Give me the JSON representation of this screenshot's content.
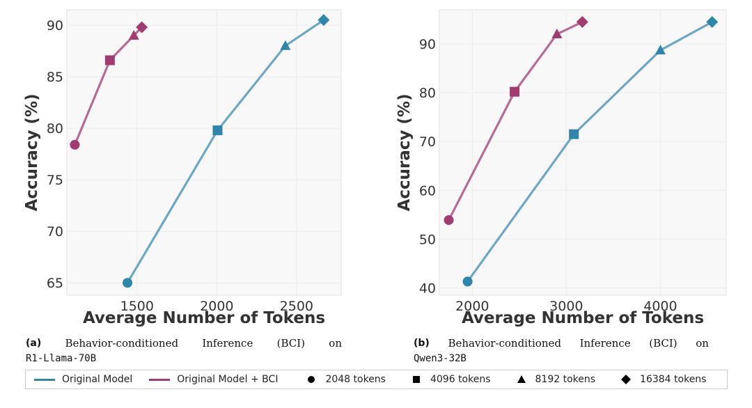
{
  "colors": {
    "original": "#6AA8C4",
    "bci": "#B66A96",
    "marker_original": "#2E86AB",
    "marker_bci": "#A23B72"
  },
  "chart_data": [
    {
      "type": "line",
      "xlabel": "Average Number of Tokens",
      "ylabel": "Accuracy (%)",
      "xlim": [
        1060,
        2780
      ],
      "ylim": [
        63.8,
        91.5
      ],
      "xticks": [
        1500,
        2000,
        2500
      ],
      "yticks": [
        65,
        70,
        75,
        80,
        85,
        90
      ],
      "grid": true,
      "series": [
        {
          "name": "Original Model",
          "x": [
            1440,
            2005,
            2430,
            2670
          ],
          "y": [
            65.0,
            79.8,
            88.0,
            90.5
          ]
        },
        {
          "name": "Original Model + BCI",
          "x": [
            1110,
            1330,
            1480,
            1530
          ],
          "y": [
            78.4,
            86.6,
            89.0,
            89.8
          ]
        }
      ]
    },
    {
      "type": "line",
      "xlabel": "Average Number of Tokens",
      "ylabel": "Accuracy (%)",
      "xlim": [
        1650,
        4700
      ],
      "ylim": [
        38.5,
        97
      ],
      "xticks": [
        2000,
        3000,
        4000
      ],
      "yticks": [
        40,
        50,
        60,
        70,
        80,
        90
      ],
      "grid": true,
      "series": [
        {
          "name": "Original Model",
          "x": [
            1950,
            3080,
            4000,
            4550
          ],
          "y": [
            41.3,
            71.5,
            88.7,
            94.5
          ]
        },
        {
          "name": "Original Model + BCI",
          "x": [
            1750,
            2450,
            2900,
            3170
          ],
          "y": [
            53.9,
            80.2,
            92.0,
            94.5
          ]
        }
      ]
    }
  ],
  "captions": [
    {
      "tag": "(a)",
      "words": [
        "Behavior-conditioned",
        "Inference",
        "(BCI)",
        "on"
      ],
      "model": "R1-Llama-70B"
    },
    {
      "tag": "(b)",
      "words": [
        "Behavior-conditioned",
        "Inference",
        "(BCI)",
        "on"
      ],
      "model": "Qwen3-32B"
    }
  ],
  "legend": {
    "lines": [
      "Original Model",
      "Original Model + BCI"
    ],
    "markers": [
      {
        "shape": "circle",
        "label": "2048 tokens"
      },
      {
        "shape": "square",
        "label": "4096 tokens"
      },
      {
        "shape": "triangle",
        "label": "8192 tokens"
      },
      {
        "shape": "diamond",
        "label": "16384 tokens"
      }
    ]
  }
}
